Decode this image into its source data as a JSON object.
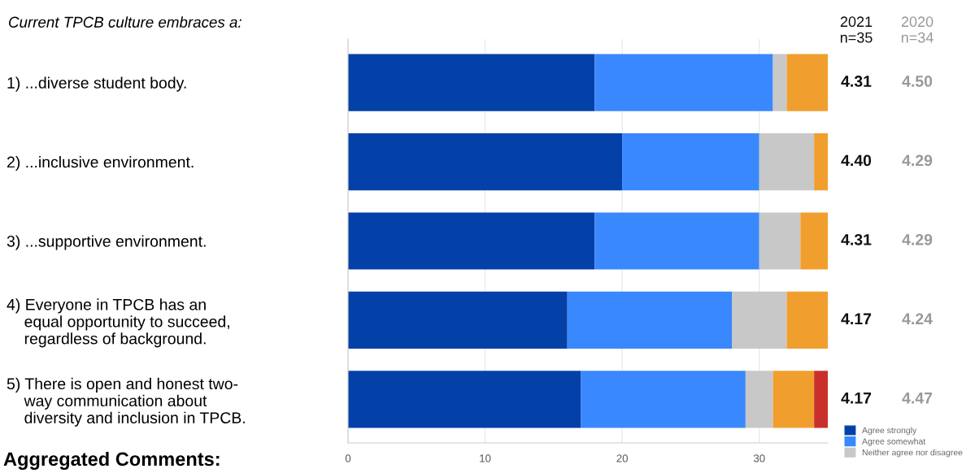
{
  "chart_data": {
    "type": "bar",
    "orientation": "horizontal",
    "stacked": true,
    "title": "Current TPCB culture embraces a:",
    "categories": [
      "1) ...diverse student body.",
      "2) ...inclusive environment.",
      "3) ...supportive environment.",
      "4) Everyone in TPCB has an\n    equal opportunity to succeed,\n    regardless of background.",
      "5) There is open and honest two-\n    way communication about\n    diversity and inclusion in TPCB."
    ],
    "series": [
      {
        "name": "Agree strongly",
        "color": "#0341a8",
        "values": [
          18,
          20,
          18,
          16,
          17
        ]
      },
      {
        "name": "Agree somewhat",
        "color": "#3a88fe",
        "values": [
          13,
          10,
          12,
          12,
          12
        ]
      },
      {
        "name": "Neither agree nor disagree",
        "color": "#c8c8c8",
        "values": [
          1,
          4,
          3,
          4,
          2
        ]
      },
      {
        "color": "#f09f2f",
        "values": [
          3,
          1,
          2,
          3,
          3
        ]
      },
      {
        "color": "#c9302c",
        "values": [
          0,
          0,
          0,
          0,
          1
        ]
      }
    ],
    "xlim": [
      0,
      35
    ],
    "xticks": [
      0,
      10,
      20,
      30
    ],
    "grid": "x",
    "legend": "bottom right",
    "annotations": [
      "2021\nn=35",
      "2020\nn=34",
      "4.31",
      "4.50",
      "4.40",
      "4.29",
      "4.31",
      "4.29",
      "4.17",
      "4.24",
      "4.17",
      "4.47",
      "Aggregated Comments:"
    ]
  }
}
